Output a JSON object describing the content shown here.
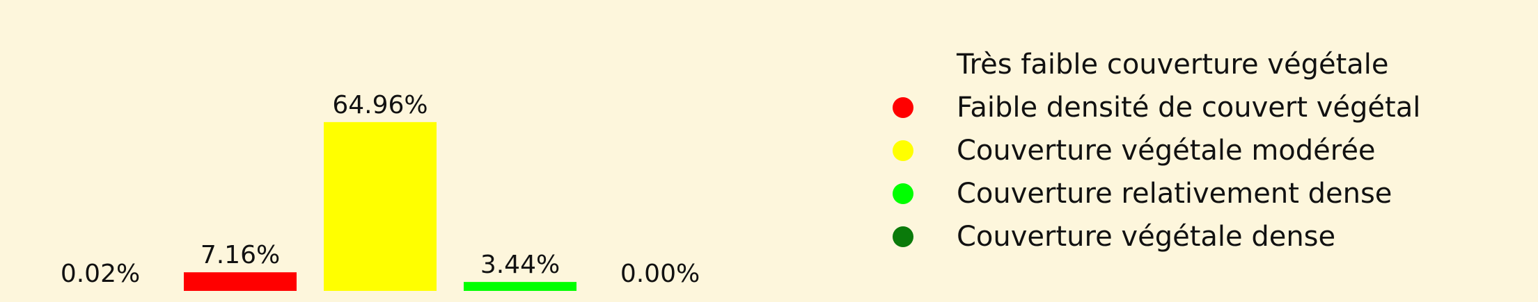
{
  "chart_data": {
    "type": "bar",
    "categories": [
      "Très faible couverture végétale",
      "Faible densité de couvert végétal",
      "Couverture végétale modérée",
      "Couverture relativement dense",
      "Couverture végétale dense"
    ],
    "values": [
      0.02,
      7.16,
      64.96,
      3.44,
      0.0
    ],
    "value_labels": [
      "0.02%",
      "7.16%",
      "64.96%",
      "3.44%",
      "0.00%"
    ],
    "colors": [
      "#fdf6dc",
      "#ff0000",
      "#ffff00",
      "#00ff00",
      "#0a7a0a"
    ],
    "ylim": [
      0,
      70
    ],
    "grid": false,
    "legend_position": "right"
  }
}
